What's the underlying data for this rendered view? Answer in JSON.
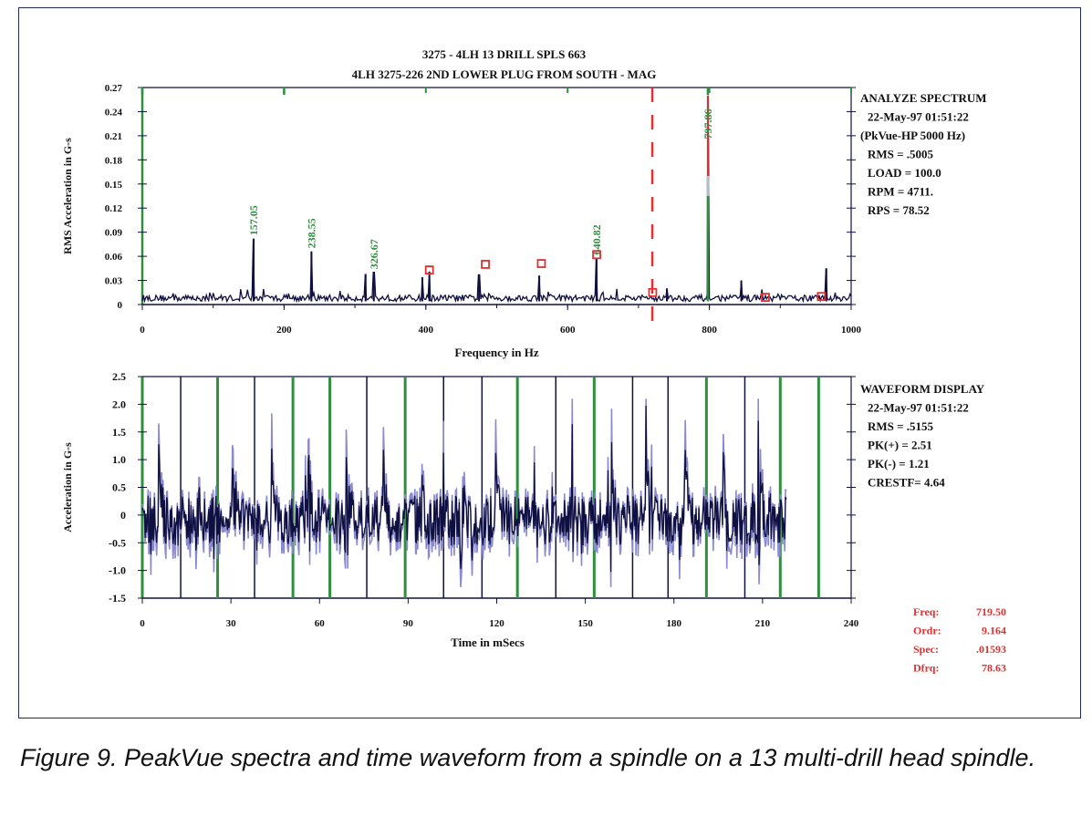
{
  "caption": "Figure 9. PeakVue spectra and time waveform from a spindle on a 13 multi-drill head spindle.",
  "colors": {
    "frame": "#1f2a63",
    "trace": "#101040",
    "trace_light": "#8a8ad0",
    "green": "#2f8f3f",
    "red": "#e03030",
    "gray": "#b8bcc8"
  },
  "chart_data": [
    {
      "type": "line",
      "name": "spectrum",
      "title": "3275 - 4LH 13 DRILL SPLS       663",
      "subtitle": "4LH   3275-226   2ND LOWER PLUG FROM SOUTH - MAG",
      "xlabel": "Frequency in Hz",
      "ylabel": "RMS Acceleration in G-s",
      "xlim": [
        0,
        1000
      ],
      "ylim": [
        0,
        0.27
      ],
      "xticks": [
        0,
        200,
        400,
        600,
        800,
        1000
      ],
      "yticks": [
        0,
        0.03,
        0.06,
        0.09,
        0.12,
        0.15,
        0.18,
        0.21,
        0.24,
        0.27
      ],
      "ytick_labels": [
        "0",
        "0.03",
        "0.06",
        "0.09",
        "0.12",
        "0.15",
        "0.18",
        "0.21",
        "0.24",
        "0.27"
      ],
      "peaks": [
        {
          "x": 157.05,
          "y": 0.082,
          "label": "157.05"
        },
        {
          "x": 238.55,
          "y": 0.066,
          "label": "238.55"
        },
        {
          "x": 326.67,
          "y": 0.04,
          "label": "326.67"
        },
        {
          "x": 640.82,
          "y": 0.058,
          "label": "640.82"
        },
        {
          "x": 797.86,
          "y": 0.26,
          "label": "797.86"
        }
      ],
      "other_peaks": [
        {
          "x": 315,
          "y": 0.038
        },
        {
          "x": 395,
          "y": 0.034
        },
        {
          "x": 405,
          "y": 0.041
        },
        {
          "x": 475,
          "y": 0.037
        },
        {
          "x": 560,
          "y": 0.036
        },
        {
          "x": 740,
          "y": 0.02
        },
        {
          "x": 845,
          "y": 0.03
        },
        {
          "x": 965,
          "y": 0.045
        }
      ],
      "harmonic_markers": [
        {
          "x": 405,
          "y": 0.043
        },
        {
          "x": 484,
          "y": 0.05
        },
        {
          "x": 563,
          "y": 0.051
        },
        {
          "x": 641,
          "y": 0.062
        },
        {
          "x": 720,
          "y": 0.015
        },
        {
          "x": 879,
          "y": 0.009
        },
        {
          "x": 958,
          "y": 0.01
        }
      ],
      "green_ticks": [
        0,
        200,
        797.86
      ],
      "cursor_x": 719.5,
      "info_lines": [
        "ANALYZE SPECTRUM",
        "22-May-97  01:51:22",
        "(PkVue-HP 5000 Hz)",
        "RMS =  .5005",
        "LOAD = 100.0",
        "RPM =  4711.",
        "RPS =  78.52"
      ]
    },
    {
      "type": "line",
      "name": "waveform",
      "xlabel": "Time in mSecs",
      "ylabel": "Acceleration in G-s",
      "xlim": [
        0,
        240
      ],
      "ylim": [
        -1.5,
        2.5
      ],
      "xticks": [
        0,
        30,
        60,
        90,
        120,
        150,
        180,
        210,
        240
      ],
      "yticks": [
        -1.5,
        -1.0,
        -0.5,
        0,
        0.5,
        1.0,
        1.5,
        2.0,
        2.5
      ],
      "ytick_labels": [
        "-1.5",
        "-1.0",
        "-0.5",
        "0",
        "0.5",
        "1.0",
        "1.5",
        "2.0",
        "2.5"
      ],
      "trace_end": 218,
      "green_lines": [
        0,
        25.5,
        51,
        63.5,
        89,
        127,
        153,
        191,
        216,
        229
      ],
      "dark_lines": [
        13,
        38,
        76,
        102,
        115,
        140,
        166,
        178,
        204
      ],
      "info_lines": [
        "WAVEFORM DISPLAY",
        "22-May-97  01:51:22",
        "RMS =  .5155",
        "PK(+) = 2.51",
        "PK(-) = 1.21",
        "CRESTF= 4.64"
      ]
    }
  ],
  "cursor_readout": [
    {
      "label": "Freq:",
      "value": "719.50"
    },
    {
      "label": "Ordr:",
      "value": "9.164"
    },
    {
      "label": "Spec:",
      "value": ".01593"
    },
    {
      "label": "Dfrq:",
      "value": "78.63"
    }
  ]
}
